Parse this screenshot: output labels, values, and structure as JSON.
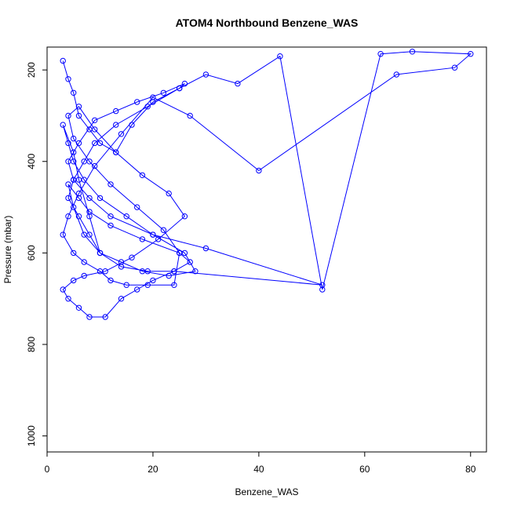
{
  "chart_data": {
    "type": "scatter",
    "title": "ATOM4 Northbound Benzene_WAS",
    "xlabel": "Benzene_WAS",
    "ylabel": "Pressure (mbar)",
    "xlim": [
      0,
      83
    ],
    "ylim": [
      1035,
      150
    ],
    "y_reversed": true,
    "x_ticks": [
      0,
      20,
      40,
      60,
      80
    ],
    "y_ticks": [
      200,
      400,
      600,
      800,
      1000
    ],
    "grid": false,
    "series_color": "#0000ff",
    "series": [
      {
        "x": [
          3,
          4,
          5,
          6,
          8,
          10,
          13,
          16,
          20,
          25,
          30,
          36,
          44,
          52,
          63,
          69,
          80,
          77,
          66,
          40,
          27,
          20,
          14,
          9,
          6,
          4,
          3,
          5,
          7,
          10,
          12,
          15,
          19,
          24,
          25,
          22,
          17,
          12,
          8,
          5,
          4,
          6,
          9,
          13,
          18,
          23,
          26,
          21,
          16,
          11,
          7,
          5,
          3,
          4,
          6,
          8,
          11,
          14,
          17,
          20,
          24,
          27,
          25,
          18,
          12,
          8,
          6,
          4,
          5,
          7,
          10,
          14,
          19,
          24,
          52,
          30,
          20,
          12,
          8,
          5,
          4,
          6,
          9,
          13,
          17,
          22,
          26,
          25,
          19,
          13,
          9,
          7,
          5,
          4,
          6,
          8,
          10,
          14,
          18,
          23,
          28,
          26,
          20,
          15,
          10,
          7,
          5,
          4,
          3,
          5,
          6,
          8,
          10
        ],
        "y": [
          180,
          220,
          250,
          300,
          330,
          360,
          380,
          320,
          270,
          240,
          210,
          230,
          170,
          680,
          165,
          160,
          165,
          195,
          210,
          420,
          300,
          260,
          340,
          410,
          470,
          520,
          560,
          600,
          620,
          640,
          660,
          670,
          670,
          670,
          600,
          550,
          500,
          450,
          400,
          350,
          300,
          280,
          330,
          380,
          430,
          470,
          520,
          570,
          610,
          640,
          650,
          660,
          680,
          700,
          720,
          740,
          740,
          700,
          680,
          660,
          640,
          620,
          600,
          570,
          540,
          510,
          480,
          450,
          500,
          560,
          600,
          630,
          640,
          640,
          670,
          590,
          560,
          520,
          480,
          440,
          400,
          360,
          310,
          290,
          270,
          250,
          230,
          240,
          280,
          320,
          360,
          400,
          440,
          480,
          520,
          560,
          600,
          620,
          640,
          650,
          640,
          600,
          560,
          520,
          480,
          440,
          400,
          360,
          320,
          380,
          440,
          520,
          600
        ]
      }
    ]
  }
}
